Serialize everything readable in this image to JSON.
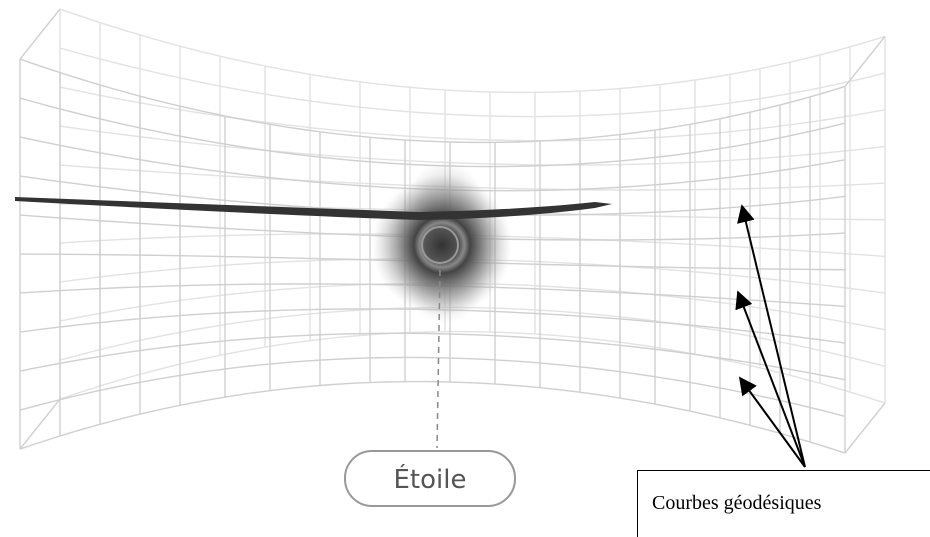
{
  "labels": {
    "star": "Étoile",
    "caption": "Courbes géodésiques"
  }
}
